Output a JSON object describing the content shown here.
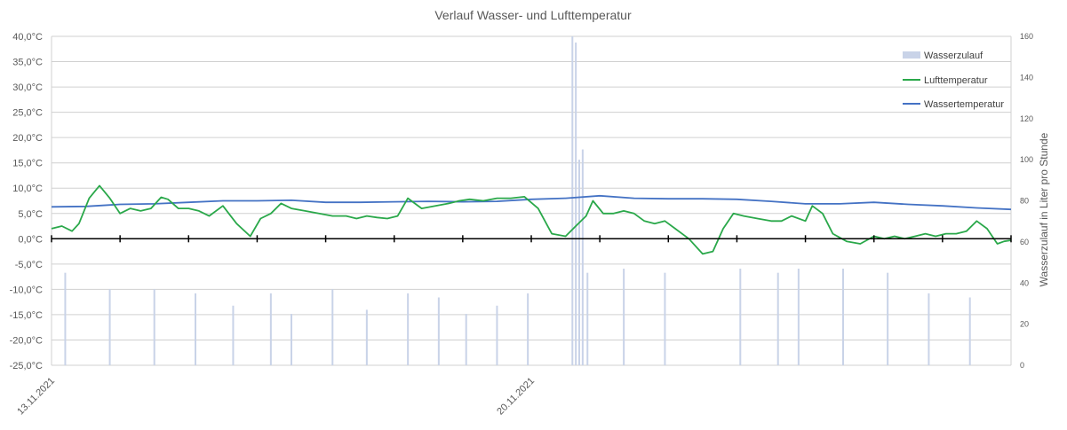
{
  "chart_data": {
    "type": "line",
    "title": "Verlauf Wasser- und Lufttemperatur",
    "xlabel": "",
    "ylabel_left": "",
    "ylabel_right": "Wasserzulauf in Liter pro Stunde",
    "x_range_days": [
      0,
      14
    ],
    "x_tick_labels": [
      {
        "day": 0,
        "label": "13.11.2021"
      },
      {
        "day": 7,
        "label": "20.11.2021"
      }
    ],
    "y_left": {
      "min": -25,
      "max": 40,
      "step": 5,
      "tick_labels": [
        "-25,0°C",
        "-20,0°C",
        "-15,0°C",
        "-10,0°C",
        "-5,0°C",
        "0,0°C",
        "5,0°C",
        "10,0°C",
        "15,0°C",
        "20,0°C",
        "25,0°C",
        "30,0°C",
        "35,0°C",
        "40,0°C"
      ]
    },
    "y_right": {
      "min": 0,
      "max": 160,
      "step": 20,
      "tick_labels": [
        "0",
        "20",
        "40",
        "60",
        "80",
        "100",
        "120",
        "140",
        "160"
      ]
    },
    "grid": true,
    "legend_position": "top-right",
    "legend": [
      {
        "name": "Wasserzulauf",
        "color": "#c9d3e8",
        "kind": "bar"
      },
      {
        "name": "Lufttemperatur",
        "color": "#2aa84a",
        "kind": "line"
      },
      {
        "name": "Wassertemperatur",
        "color": "#4472c4",
        "kind": "line"
      }
    ],
    "series": [
      {
        "name": "Wassertemperatur",
        "axis": "left",
        "color": "#4472c4",
        "x": [
          0,
          0.5,
          1,
          1.5,
          2,
          2.5,
          3,
          3.5,
          4,
          4.5,
          5,
          5.5,
          6,
          6.5,
          7,
          7.5,
          8,
          8.5,
          9,
          9.5,
          10,
          10.5,
          11,
          11.5,
          12,
          12.5,
          13,
          13.5,
          14
        ],
        "y": [
          6.3,
          6.4,
          6.8,
          6.9,
          7.2,
          7.5,
          7.5,
          7.6,
          7.2,
          7.2,
          7.3,
          7.4,
          7.3,
          7.4,
          7.8,
          8.0,
          8.5,
          8.0,
          7.9,
          7.9,
          7.8,
          7.4,
          6.9,
          6.9,
          7.2,
          6.8,
          6.5,
          6.1,
          5.8
        ]
      },
      {
        "name": "Lufttemperatur",
        "axis": "left",
        "color": "#2aa84a",
        "x": [
          0,
          0.15,
          0.3,
          0.4,
          0.55,
          0.7,
          0.85,
          1.0,
          1.15,
          1.3,
          1.45,
          1.6,
          1.7,
          1.85,
          2.0,
          2.15,
          2.3,
          2.5,
          2.7,
          2.9,
          3.05,
          3.2,
          3.35,
          3.5,
          3.7,
          3.9,
          4.1,
          4.3,
          4.45,
          4.6,
          4.75,
          4.9,
          5.05,
          5.2,
          5.4,
          5.6,
          5.8,
          5.95,
          6.1,
          6.3,
          6.5,
          6.7,
          6.9,
          7.1,
          7.3,
          7.5,
          7.65,
          7.8,
          7.9,
          8.05,
          8.2,
          8.35,
          8.5,
          8.65,
          8.8,
          8.95,
          9.1,
          9.3,
          9.5,
          9.65,
          9.8,
          9.95,
          10.1,
          10.3,
          10.5,
          10.65,
          10.8,
          11.0,
          11.1,
          11.25,
          11.4,
          11.6,
          11.8,
          12.0,
          12.15,
          12.3,
          12.45,
          12.6,
          12.75,
          12.9,
          13.05,
          13.2,
          13.35,
          13.5,
          13.65,
          13.8,
          13.9,
          14.0
        ],
        "y": [
          2.0,
          2.5,
          1.5,
          3.0,
          8.0,
          10.5,
          8.0,
          5.0,
          6.0,
          5.5,
          6.0,
          8.2,
          7.8,
          6.0,
          6.0,
          5.5,
          4.5,
          6.5,
          3.0,
          0.5,
          4.0,
          5.0,
          7.0,
          6.0,
          5.5,
          5.0,
          4.5,
          4.5,
          4.0,
          4.5,
          4.2,
          4.0,
          4.5,
          8.0,
          6.0,
          6.5,
          7.0,
          7.5,
          7.8,
          7.5,
          8.0,
          8.0,
          8.3,
          6.0,
          1.0,
          0.5,
          2.5,
          4.5,
          7.5,
          5.0,
          5.0,
          5.5,
          5.0,
          3.5,
          3.0,
          3.5,
          2.0,
          0.0,
          -3.0,
          -2.5,
          2.0,
          5.0,
          4.5,
          4.0,
          3.5,
          3.5,
          4.5,
          3.5,
          6.5,
          5.0,
          1.0,
          -0.5,
          -1.0,
          0.5,
          0.0,
          0.5,
          0.0,
          0.5,
          1.0,
          0.5,
          1.0,
          1.0,
          1.5,
          3.5,
          2.0,
          -1.0,
          -0.5,
          -0.3
        ]
      },
      {
        "name": "Wasserzulauf",
        "axis": "right",
        "color": "#c9d3e8",
        "type": "bar",
        "x": [
          0.2,
          0.85,
          1.5,
          2.1,
          2.65,
          3.2,
          3.5,
          4.1,
          4.6,
          5.2,
          5.65,
          6.05,
          6.5,
          6.95,
          7.6,
          7.65,
          7.7,
          7.75,
          7.82,
          8.35,
          8.95,
          10.05,
          10.6,
          10.9,
          11.55,
          12.2,
          12.8,
          13.4
        ],
        "y": [
          45,
          37,
          37,
          35,
          29,
          35,
          25,
          37,
          27,
          35,
          33,
          25,
          29,
          35,
          160,
          157,
          100,
          105,
          45,
          47,
          45,
          47,
          45,
          47,
          47,
          45,
          35,
          33
        ]
      }
    ]
  }
}
